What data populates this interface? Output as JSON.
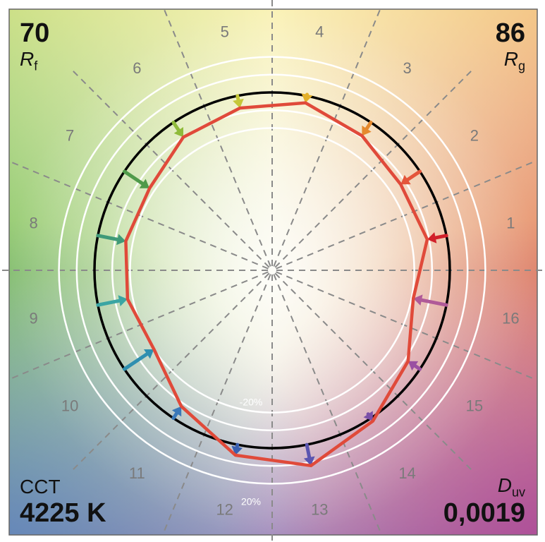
{
  "corners": {
    "rf_value": "70",
    "rf_symbol": "R",
    "rf_subscript": "f",
    "rg_value": "86",
    "rg_symbol": "R",
    "rg_subscript": "g",
    "cct_label": "CCT",
    "cct_value": "4225 K",
    "duv_symbol": "D",
    "duv_subscript": "uv",
    "duv_value": "0,0019"
  },
  "chart_data": {
    "type": "line",
    "polar": true,
    "hue_bins": [
      "1",
      "2",
      "3",
      "4",
      "5",
      "6",
      "7",
      "8",
      "9",
      "10",
      "11",
      "12",
      "13",
      "14",
      "15",
      "16"
    ],
    "reference_radius": 1.0,
    "ring_labels": [
      "-20%",
      "20%"
    ],
    "rings_relative": [
      -0.2,
      -0.1,
      0.1,
      0.2
    ],
    "series": [
      {
        "values": [
          0.89,
          0.87,
          0.91,
          0.96,
          0.93,
          0.9,
          0.83,
          0.84,
          0.83,
          0.8,
          0.92,
          1.06,
          1.12,
          1.02,
          0.92,
          0.81
        ]
      }
    ],
    "arrow_colors": [
      "#d1202a",
      "#e4553a",
      "#e5892e",
      "#e3b02a",
      "#c6c83a",
      "#8fbb3a",
      "#4f9a4a",
      "#3f9a78",
      "#3aa5a3",
      "#2f8fb0",
      "#3a78b8",
      "#3a60b0",
      "#5a55b0",
      "#7a50a8",
      "#9a50a2",
      "#b05a98"
    ],
    "test_curve_color": "#e04a3a",
    "reference_circle_color": "#000000"
  }
}
